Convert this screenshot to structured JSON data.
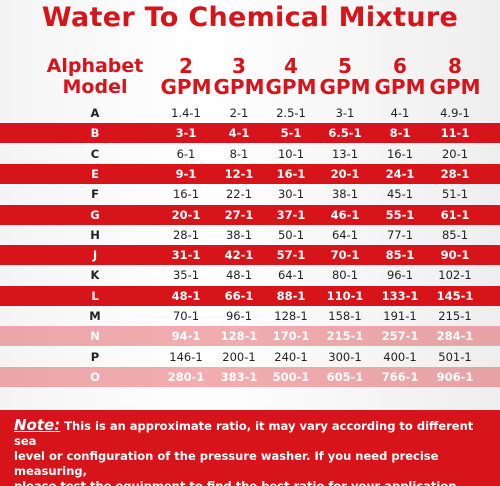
{
  "title": "Water To Chemical Mixture",
  "model_header": [
    "Alphabet",
    "Model"
  ],
  "columns": [
    [
      "2",
      "GPM"
    ],
    [
      "3",
      "GPM"
    ],
    [
      "4",
      "GPM"
    ],
    [
      "5",
      "GPM"
    ],
    [
      "6",
      "GPM"
    ],
    [
      "8",
      "GPM"
    ]
  ],
  "rows": [
    [
      "A",
      "1.4-1",
      "2-1",
      "2.5-1",
      "3-1",
      "4-1",
      "4.9-1"
    ],
    [
      "B",
      "3-1",
      "4-1",
      "5-1",
      "6.5-1",
      "8-1",
      "11-1"
    ],
    [
      "C",
      "6-1",
      "8-1",
      "10-1",
      "13-1",
      "16-1",
      "20-1"
    ],
    [
      "E",
      "9-1",
      "12-1",
      "16-1",
      "20-1",
      "24-1",
      "28-1"
    ],
    [
      "F",
      "16-1",
      "22-1",
      "30-1",
      "38-1",
      "45-1",
      "51-1"
    ],
    [
      "G",
      "20-1",
      "27-1",
      "37-1",
      "46-1",
      "55-1",
      "61-1"
    ],
    [
      "H",
      "28-1",
      "38-1",
      "50-1",
      "64-1",
      "77-1",
      "85-1"
    ],
    [
      "J",
      "31-1",
      "42-1",
      "57-1",
      "70-1",
      "85-1",
      "90-1"
    ],
    [
      "K",
      "35-1",
      "48-1",
      "64-1",
      "80-1",
      "96-1",
      "102-1"
    ],
    [
      "L",
      "48-1",
      "66-1",
      "88-1",
      "110-1",
      "133-1",
      "145-1"
    ],
    [
      "M",
      "70-1",
      "96-1",
      "128-1",
      "158-1",
      "191-1",
      "215-1"
    ],
    [
      "N",
      "94-1",
      "128-1",
      "170-1",
      "215-1",
      "257-1",
      "284-1"
    ],
    [
      "P",
      "146-1",
      "200-1",
      "240-1",
      "300-1",
      "400-1",
      "501-1"
    ],
    [
      "O",
      "280-1",
      "383-1",
      "500-1",
      "605-1",
      "766-1",
      "906-1"
    ]
  ],
  "note": {
    "label": "Note:",
    "lines": [
      "This is an approximate ratio, it may vary according to different sea",
      "level or configuration of the pressure washer. If you need precise measuring,",
      "please test the equipment to find the best ratio for your application."
    ]
  }
}
